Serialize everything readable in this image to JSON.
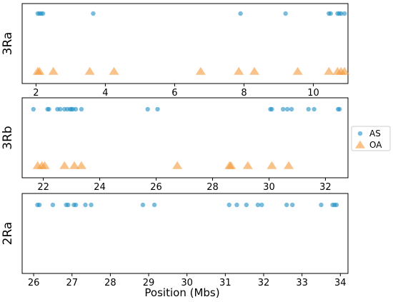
{
  "chart_data": {
    "type": "scatter",
    "xlabel": "Position (Mbs)",
    "colors": {
      "AS": "#1f8fc4",
      "OA": "#f39a3a"
    },
    "legend": {
      "placement": "center-right",
      "entries": [
        {
          "name": "AS",
          "marker": "circle"
        },
        {
          "name": "OA",
          "marker": "triangle"
        }
      ]
    },
    "panels": [
      {
        "ylabel": "3Ra",
        "xlim": [
          1.6,
          11.0
        ],
        "xticks": [
          2,
          4,
          6,
          8,
          10
        ],
        "series": [
          {
            "name": "AS",
            "x": [
              2.05,
              2.1,
              2.15,
              2.2,
              3.65,
              7.9,
              9.2,
              10.45,
              10.5,
              10.7,
              10.75,
              10.8,
              10.9
            ]
          },
          {
            "name": "OA",
            "x": [
              2.05,
              2.1,
              2.5,
              3.55,
              4.25,
              6.75,
              7.85,
              8.3,
              9.55,
              10.45,
              10.7,
              10.8,
              10.9
            ]
          }
        ]
      },
      {
        "ylabel": "3Rb",
        "xlim": [
          21.25,
          32.8
        ],
        "xticks": [
          22,
          24,
          26,
          28,
          30,
          32
        ],
        "series": [
          {
            "name": "AS",
            "x": [
              21.65,
              22.15,
              22.2,
              22.5,
              22.6,
              22.75,
              22.85,
              22.95,
              23.0,
              23.05,
              23.15,
              23.35,
              25.7,
              26.05,
              30.05,
              30.1,
              30.5,
              30.65,
              30.8,
              31.4,
              31.6,
              32.45,
              32.5
            ]
          },
          {
            "name": "OA",
            "x": [
              21.8,
              21.95,
              22.05,
              22.75,
              23.1,
              23.35,
              26.75,
              28.6,
              28.65,
              29.25,
              30.1,
              30.7
            ]
          }
        ]
      },
      {
        "ylabel": "2Ra",
        "xlim": [
          25.7,
          34.2
        ],
        "xticks": [
          26,
          27,
          28,
          29,
          30,
          31,
          32,
          33,
          34
        ],
        "series": [
          {
            "name": "AS",
            "x": [
              26.1,
              26.15,
              26.5,
              26.85,
              26.9,
              27.05,
              27.1,
              27.35,
              27.5,
              28.85,
              29.15,
              31.1,
              31.3,
              31.55,
              31.85,
              31.95,
              32.6,
              32.75,
              33.5,
              33.8,
              33.85,
              33.9
            ]
          }
        ]
      }
    ]
  }
}
